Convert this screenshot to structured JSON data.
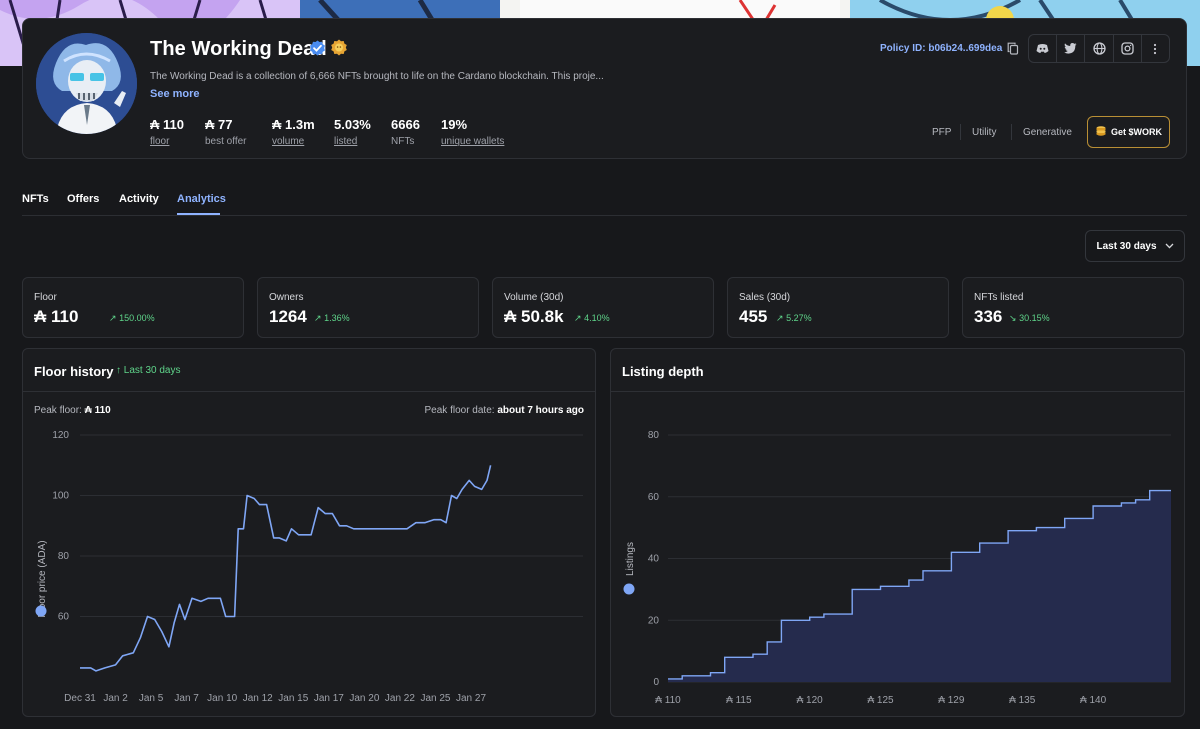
{
  "collection": {
    "name": "The Working Dead",
    "description": "The Working Dead is a collection of 6,666 NFTs brought to life on the Cardano blockchain. This proje...",
    "see_more": "See more",
    "policy_id": "Policy ID: b06b24..699dea"
  },
  "header_stats": [
    {
      "value": "₳ 110",
      "label": "floor"
    },
    {
      "value": "₳ 77",
      "label": "best offer"
    },
    {
      "value": "₳ 1.3m",
      "label": "volume"
    },
    {
      "value": "5.03%",
      "label": "listed"
    },
    {
      "value": "6666",
      "label": "NFTs"
    },
    {
      "value": "19%",
      "label": "unique wallets"
    }
  ],
  "socials": [
    "discord-icon",
    "twitter-icon",
    "globe-icon",
    "instagram-icon",
    "more-icon"
  ],
  "tags": [
    "PFP",
    "Utility",
    "Generative"
  ],
  "token_button": "Get $WORK",
  "tabs": [
    "NFTs",
    "Offers",
    "Activity",
    "Analytics"
  ],
  "active_tab": "Analytics",
  "range_select": "Last 30 days",
  "stat_cards": [
    {
      "label": "Floor",
      "value": "₳ 110",
      "change": "150.00%",
      "direction": "up"
    },
    {
      "label": "Owners",
      "value": "1264",
      "change": "1.36%",
      "direction": "up"
    },
    {
      "label": "Volume (30d)",
      "value": "₳ 50.8k",
      "change": "4.10%",
      "direction": "up"
    },
    {
      "label": "Sales (30d)",
      "value": "455",
      "change": "5.27%",
      "direction": "up"
    },
    {
      "label": "NFTs listed",
      "value": "336",
      "change": "30.15%",
      "direction": "down"
    }
  ],
  "floor_panel": {
    "title": "Floor history",
    "subtitle": "Last 30 days",
    "peak_floor_label": "Peak floor:",
    "peak_floor_value": "₳ 110",
    "peak_date_label": "Peak floor date:",
    "peak_date_value": "about 7 hours ago"
  },
  "depth_panel": {
    "title": "Listing depth"
  },
  "colors": {
    "accent": "#8fb3ff",
    "positive": "#5fd48a",
    "line": "#7fa6f5",
    "depth_fill": "#252b4d"
  },
  "chart_data": [
    {
      "type": "line",
      "title": "Floor history",
      "ylabel": "Floor price (ADA)",
      "xlabel": "",
      "ylim": [
        40,
        120
      ],
      "yticks": [
        60,
        80,
        100,
        120
      ],
      "xlim": [
        0,
        28.3
      ],
      "xticks": [
        {
          "day": 0,
          "label": "Dec 31"
        },
        {
          "day": 2,
          "label": "Jan 2"
        },
        {
          "day": 4,
          "label": "Jan 5"
        },
        {
          "day": 6,
          "label": "Jan 7"
        },
        {
          "day": 8,
          "label": "Jan 10"
        },
        {
          "day": 10,
          "label": "Jan 12"
        },
        {
          "day": 12,
          "label": "Jan 15"
        },
        {
          "day": 14,
          "label": "Jan 17"
        },
        {
          "day": 16,
          "label": "Jan 20"
        },
        {
          "day": 18,
          "label": "Jan 22"
        },
        {
          "day": 20,
          "label": "Jan 25"
        },
        {
          "day": 22,
          "label": "Jan 27"
        }
      ],
      "x": [
        0,
        0.6,
        0.9,
        1.4,
        2,
        2.4,
        3,
        3.4,
        3.8,
        4.2,
        4.6,
        5,
        5.3,
        5.6,
        5.9,
        6.3,
        6.8,
        7.2,
        7.9,
        8.2,
        8.7,
        8.9,
        9.2,
        9.4,
        9.8,
        10.1,
        10.5,
        10.9,
        11.2,
        11.6,
        11.9,
        12.3,
        12.6,
        13.0,
        13.4,
        13.8,
        14.2,
        14.6,
        15.0,
        15.4,
        15.8,
        16.4,
        17.4,
        18.4,
        18.9,
        19.4,
        19.9,
        20.3,
        20.6,
        20.9,
        21.2,
        21.5,
        21.9,
        22.2,
        22.6,
        22.9,
        23.1
      ],
      "y": [
        43,
        43,
        42,
        43,
        44,
        47,
        48,
        53,
        60,
        59,
        55,
        50,
        58,
        64,
        59,
        66,
        65,
        66,
        66,
        60,
        60,
        89,
        89,
        100,
        99,
        97,
        97,
        86,
        86,
        85,
        89,
        87,
        87,
        87,
        96,
        94,
        94,
        90,
        90,
        89,
        89,
        89,
        89,
        89,
        91,
        91,
        92,
        92,
        91,
        100,
        99,
        102,
        105,
        103,
        102,
        105,
        110
      ],
      "series": [
        {
          "name": "Floor price (ADA)"
        }
      ]
    },
    {
      "type": "area",
      "title": "Listing depth",
      "ylabel": "Listings",
      "xlabel": "",
      "ylim": [
        0,
        80
      ],
      "yticks": [
        0,
        20,
        40,
        60,
        80
      ],
      "xlim": [
        0,
        35.5
      ],
      "xticks": [
        {
          "x": 0,
          "label": "₳ 110"
        },
        {
          "x": 5,
          "label": "₳ 115"
        },
        {
          "x": 10,
          "label": "₳ 120"
        },
        {
          "x": 15,
          "label": "₳ 125"
        },
        {
          "x": 20,
          "label": "₳ 129"
        },
        {
          "x": 25,
          "label": "₳ 135"
        },
        {
          "x": 30,
          "label": "₳ 140"
        }
      ],
      "x": [
        0,
        1,
        2,
        3,
        4,
        5,
        6,
        7,
        8,
        9,
        10,
        11,
        12,
        13,
        14,
        15,
        16,
        17,
        18,
        19,
        20,
        21,
        22,
        23,
        24,
        25,
        26,
        27,
        28,
        29,
        30,
        31,
        32,
        33,
        34,
        35
      ],
      "y": [
        1,
        2,
        2,
        3,
        8,
        8,
        9,
        13,
        20,
        20,
        21,
        22,
        22,
        30,
        30,
        31,
        31,
        33,
        36,
        36,
        42,
        42,
        45,
        45,
        49,
        49,
        50,
        50,
        53,
        53,
        57,
        57,
        58,
        59,
        62,
        62
      ],
      "series": [
        {
          "name": "Listings"
        }
      ]
    }
  ]
}
